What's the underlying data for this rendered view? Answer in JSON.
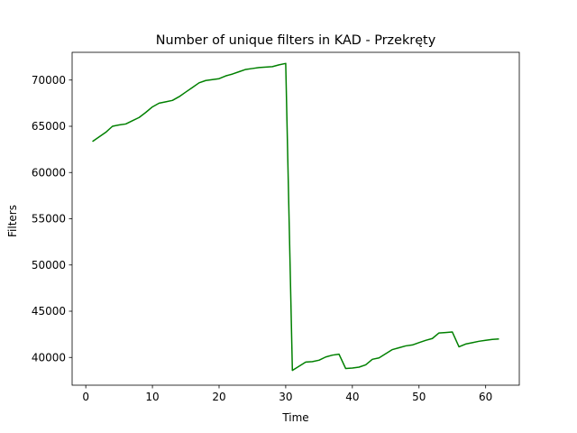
{
  "chart_data": {
    "type": "line",
    "title": "Number of unique filters in KAD - Przekręty",
    "xlabel": "Time",
    "ylabel": "Filters",
    "xlim": [
      -2.05,
      65.05
    ],
    "ylim": [
      37000,
      73000
    ],
    "xticks": [
      0,
      10,
      20,
      30,
      40,
      50,
      60
    ],
    "yticks": [
      40000,
      45000,
      50000,
      55000,
      60000,
      65000,
      70000
    ],
    "grid": false,
    "series": [
      {
        "color": "#008000",
        "x": [
          1,
          2,
          3,
          4,
          5,
          6,
          7,
          8,
          9,
          10,
          11,
          12,
          13,
          14,
          15,
          16,
          17,
          18,
          19,
          20,
          21,
          22,
          23,
          24,
          25,
          26,
          27,
          28,
          29,
          30,
          31,
          32,
          33,
          34,
          35,
          36,
          37,
          38,
          39,
          40,
          41,
          42,
          43,
          44,
          45,
          46,
          47,
          48,
          49,
          50,
          51,
          52,
          53,
          54,
          55,
          56,
          57,
          58,
          59,
          60,
          61,
          62
        ],
        "y": [
          63350,
          63850,
          64350,
          65000,
          65150,
          65250,
          65600,
          65950,
          66500,
          67100,
          67500,
          67650,
          67800,
          68200,
          68700,
          69200,
          69700,
          69950,
          70050,
          70150,
          70450,
          70650,
          70900,
          71150,
          71250,
          71350,
          71400,
          71450,
          71650,
          71800,
          38600,
          39050,
          39500,
          39550,
          39700,
          40050,
          40250,
          40350,
          38800,
          38850,
          38950,
          39200,
          39800,
          39950,
          40400,
          40850,
          41050,
          41250,
          41350,
          41600,
          41850,
          42050,
          42650,
          42700,
          42750,
          41150,
          41450,
          41600,
          41750,
          41850,
          41950,
          42000
        ]
      }
    ]
  }
}
